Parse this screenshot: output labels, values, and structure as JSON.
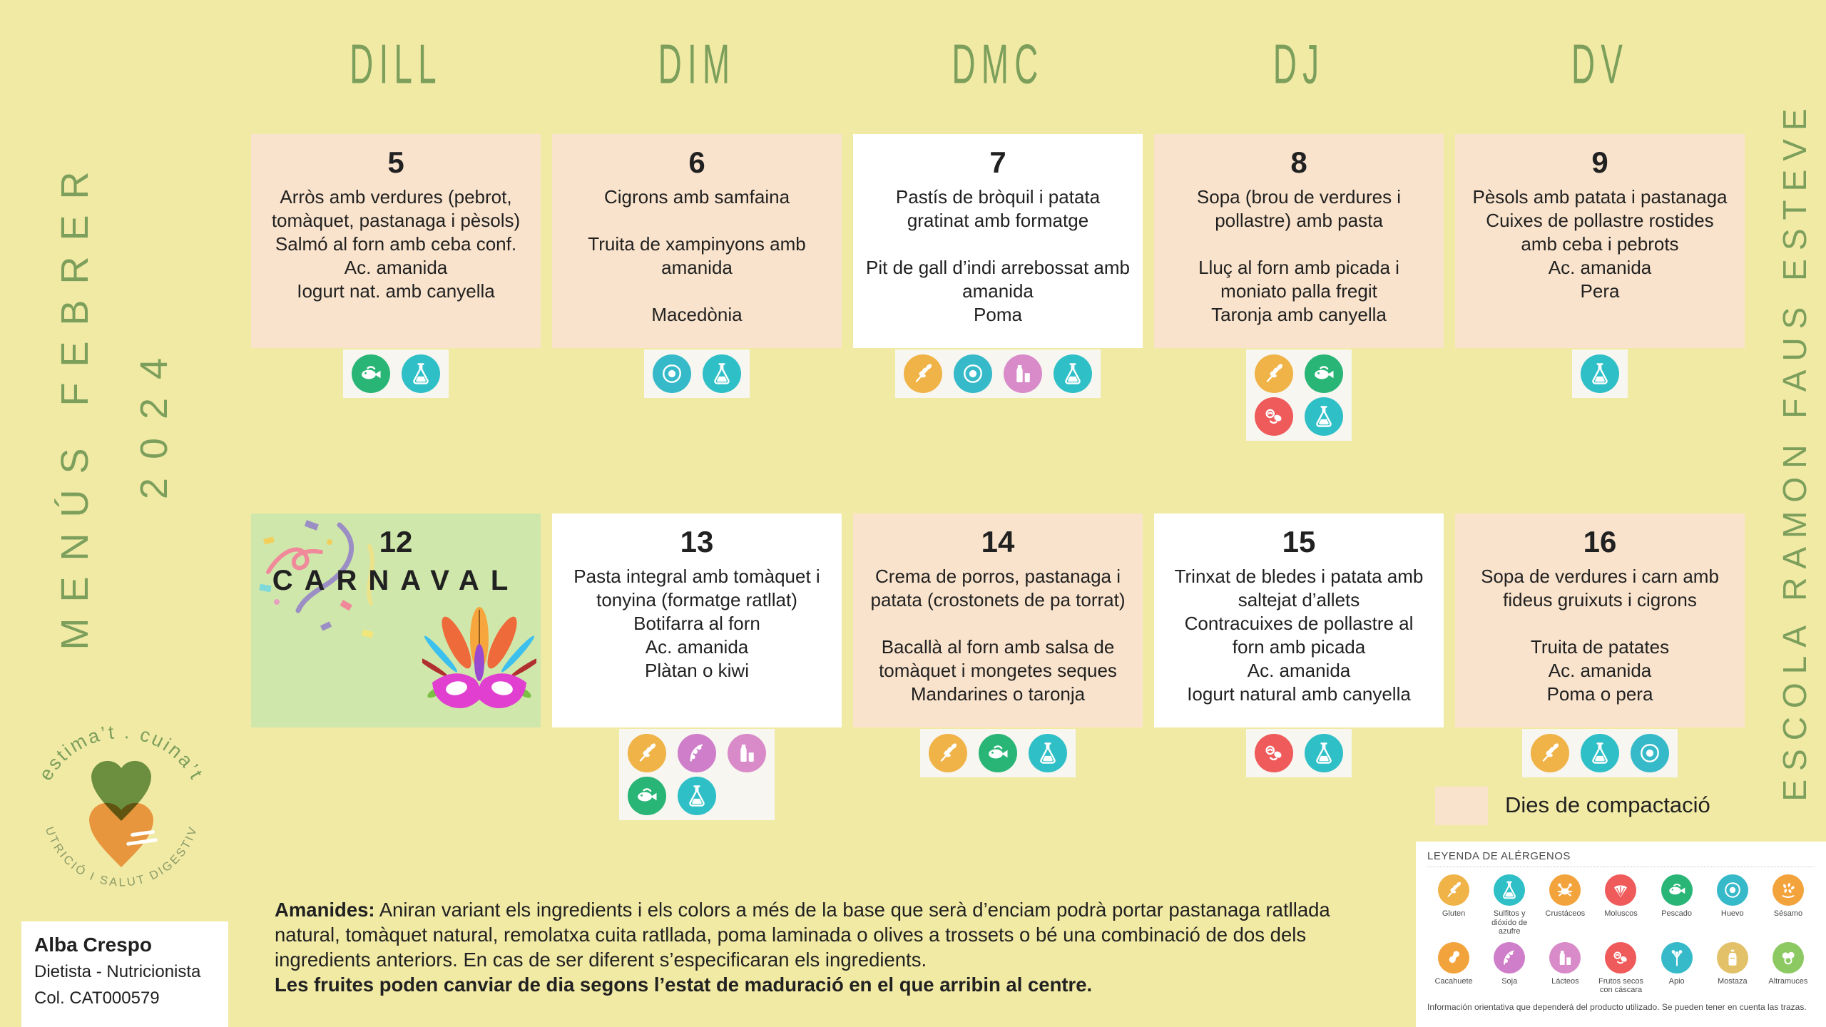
{
  "page": {
    "background": "#f1eaa5",
    "accent_green": "#7c9f5b",
    "left_title_line1": "MENÚS FEBRER",
    "left_title_line2": "2024",
    "right_title": "ESCOLA RAMON FAUS ESTEVE"
  },
  "weekdays": [
    "DILL",
    "DIM",
    "DMC",
    "DJ",
    "DV"
  ],
  "card_colors": {
    "peach": "#f9e3cc",
    "white": "#ffffff",
    "green": "#cfe7ab"
  },
  "allergens": {
    "gluten": {
      "label": "Gluten",
      "color": "#f0b347"
    },
    "sulfitos": {
      "label": "Sulfitos y dióxido de azufre",
      "color": "#2fbfc7"
    },
    "crustaceos": {
      "label": "Crustáceos",
      "color": "#f3a33c"
    },
    "moluscos": {
      "label": "Moluscos",
      "color": "#ef5a5a"
    },
    "pescado": {
      "label": "Pescado",
      "color": "#29b576"
    },
    "huevo": {
      "label": "Huevo",
      "color": "#36b9c9"
    },
    "sesamo": {
      "label": "Sésamo",
      "color": "#f3a33c"
    },
    "cacahuete": {
      "label": "Cacahuete",
      "color": "#f3a33c"
    },
    "soja": {
      "label": "Soja",
      "color": "#cf7ec9"
    },
    "lacteos": {
      "label": "Lácteos",
      "color": "#d88bc8"
    },
    "frutos_secos": {
      "label": "Frutos secos con cáscara",
      "color": "#ef5a5a"
    },
    "apio": {
      "label": "Apio",
      "color": "#36b9c9"
    },
    "mostaza": {
      "label": "Mostaza",
      "color": "#e2c169"
    },
    "altramuces": {
      "label": "Altramuces",
      "color": "#8cc963"
    }
  },
  "days": [
    {
      "number": "5",
      "variant": "peach",
      "lines": [
        "Arròs amb verdures (pebrot, tomàquet, pastanaga i pèsols)",
        "Salmó al forn amb ceba conf.",
        "Ac. amanida",
        "Iogurt nat. amb canyella"
      ],
      "allergen_rows": [
        [
          "pescado",
          "sulfitos"
        ]
      ]
    },
    {
      "number": "6",
      "variant": "peach",
      "lines": [
        "Cigrons amb samfaina",
        "",
        "Truita de xampinyons amb amanida",
        "",
        "Macedònia"
      ],
      "allergen_rows": [
        [
          "huevo",
          "sulfitos"
        ]
      ]
    },
    {
      "number": "7",
      "variant": "white",
      "lines": [
        "Pastís de bròquil i patata gratinat amb formatge",
        "",
        "Pit de gall d’indi arrebossat amb amanida",
        "Poma"
      ],
      "allergen_rows": [
        [
          "gluten",
          "huevo",
          "lacteos",
          "sulfitos"
        ]
      ]
    },
    {
      "number": "8",
      "variant": "peach",
      "lines": [
        "Sopa (brou de verdures i pollastre) amb pasta",
        "",
        "Lluç al forn amb picada i moniato palla fregit",
        "Taronja amb canyella"
      ],
      "allergen_rows": [
        [
          "gluten",
          "pescado"
        ],
        [
          "frutos_secos",
          "sulfitos"
        ]
      ]
    },
    {
      "number": "9",
      "variant": "peach",
      "lines": [
        "Pèsols amb patata i pastanaga",
        "Cuixes de pollastre rostides amb ceba i pebrots",
        "Ac. amanida",
        "Pera"
      ],
      "allergen_rows": [
        [
          "sulfitos"
        ]
      ]
    },
    {
      "number": "12",
      "variant": "green",
      "special": "carnaval",
      "special_label": "CARNAVAL",
      "lines": [],
      "allergen_rows": []
    },
    {
      "number": "13",
      "variant": "white",
      "lines": [
        "Pasta integral amb tomàquet i tonyina (formatge ratllat)",
        "Botifarra al forn",
        "Ac. amanida",
        "Plàtan o kiwi"
      ],
      "allergen_rows": [
        [
          "gluten",
          "soja",
          "lacteos"
        ],
        [
          "pescado",
          "sulfitos"
        ]
      ]
    },
    {
      "number": "14",
      "variant": "peach",
      "lines": [
        "Crema de porros, pastanaga i patata (crostonets de pa torrat)",
        "",
        "Bacallà al forn amb salsa de tomàquet i mongetes seques",
        "Mandarines o taronja"
      ],
      "allergen_rows": [
        [
          "gluten",
          "pescado",
          "sulfitos"
        ]
      ]
    },
    {
      "number": "15",
      "variant": "white",
      "lines": [
        "Trinxat de bledes i patata amb saltejat d’allets",
        "Contracuixes de pollastre al forn amb picada",
        "Ac. amanida",
        "Iogurt natural amb canyella"
      ],
      "allergen_rows": [
        [
          "frutos_secos",
          "sulfitos"
        ]
      ]
    },
    {
      "number": "16",
      "variant": "peach",
      "lines": [
        "Sopa de verdures i carn amb fideus gruixuts i cigrons",
        "",
        "Truita de patates",
        "Ac. amanida",
        "Poma o pera"
      ],
      "allergen_rows": [
        [
          "gluten",
          "sulfitos",
          "huevo"
        ]
      ]
    }
  ],
  "compaction": {
    "label": "Dies de compactació",
    "swatch_color": "#f9e3cc"
  },
  "legend": {
    "title": "LEYENDA DE ALÉRGENOS",
    "order": [
      "gluten",
      "sulfitos",
      "crustaceos",
      "moluscos",
      "pescado",
      "huevo",
      "sesamo",
      "cacahuete",
      "soja",
      "lacteos",
      "frutos_secos",
      "apio",
      "mostaza",
      "altramuces"
    ],
    "footer": "Información orientativa que dependerá del producto utilizado. Se pueden tener en cuenta las trazas."
  },
  "amanides": {
    "lead": "Amanides:",
    "body": "Aniran variant els ingredients i els colors a més de la base que serà d’enciam podrà portar pastanaga ratllada natural, tomàquet natural, remolatxa cuita ratllada, poma laminada o olives a trossets o bé una combinació de dos dels ingredients anteriors. En cas de ser diferent s’especificaran els ingredients.",
    "bold_line": "Les fruites poden canviar de dia segons l’estat de maduració en el que arribin al centre."
  },
  "dietitian": {
    "name": "Alba Crespo",
    "role": "Dietista - Nutricionista",
    "license": "Col. CAT000579"
  },
  "logo": {
    "arc_top": "estima’t . cuina’t",
    "arc_bottom": "NUTRICIÓ I SALUT DIGESTIVA"
  }
}
